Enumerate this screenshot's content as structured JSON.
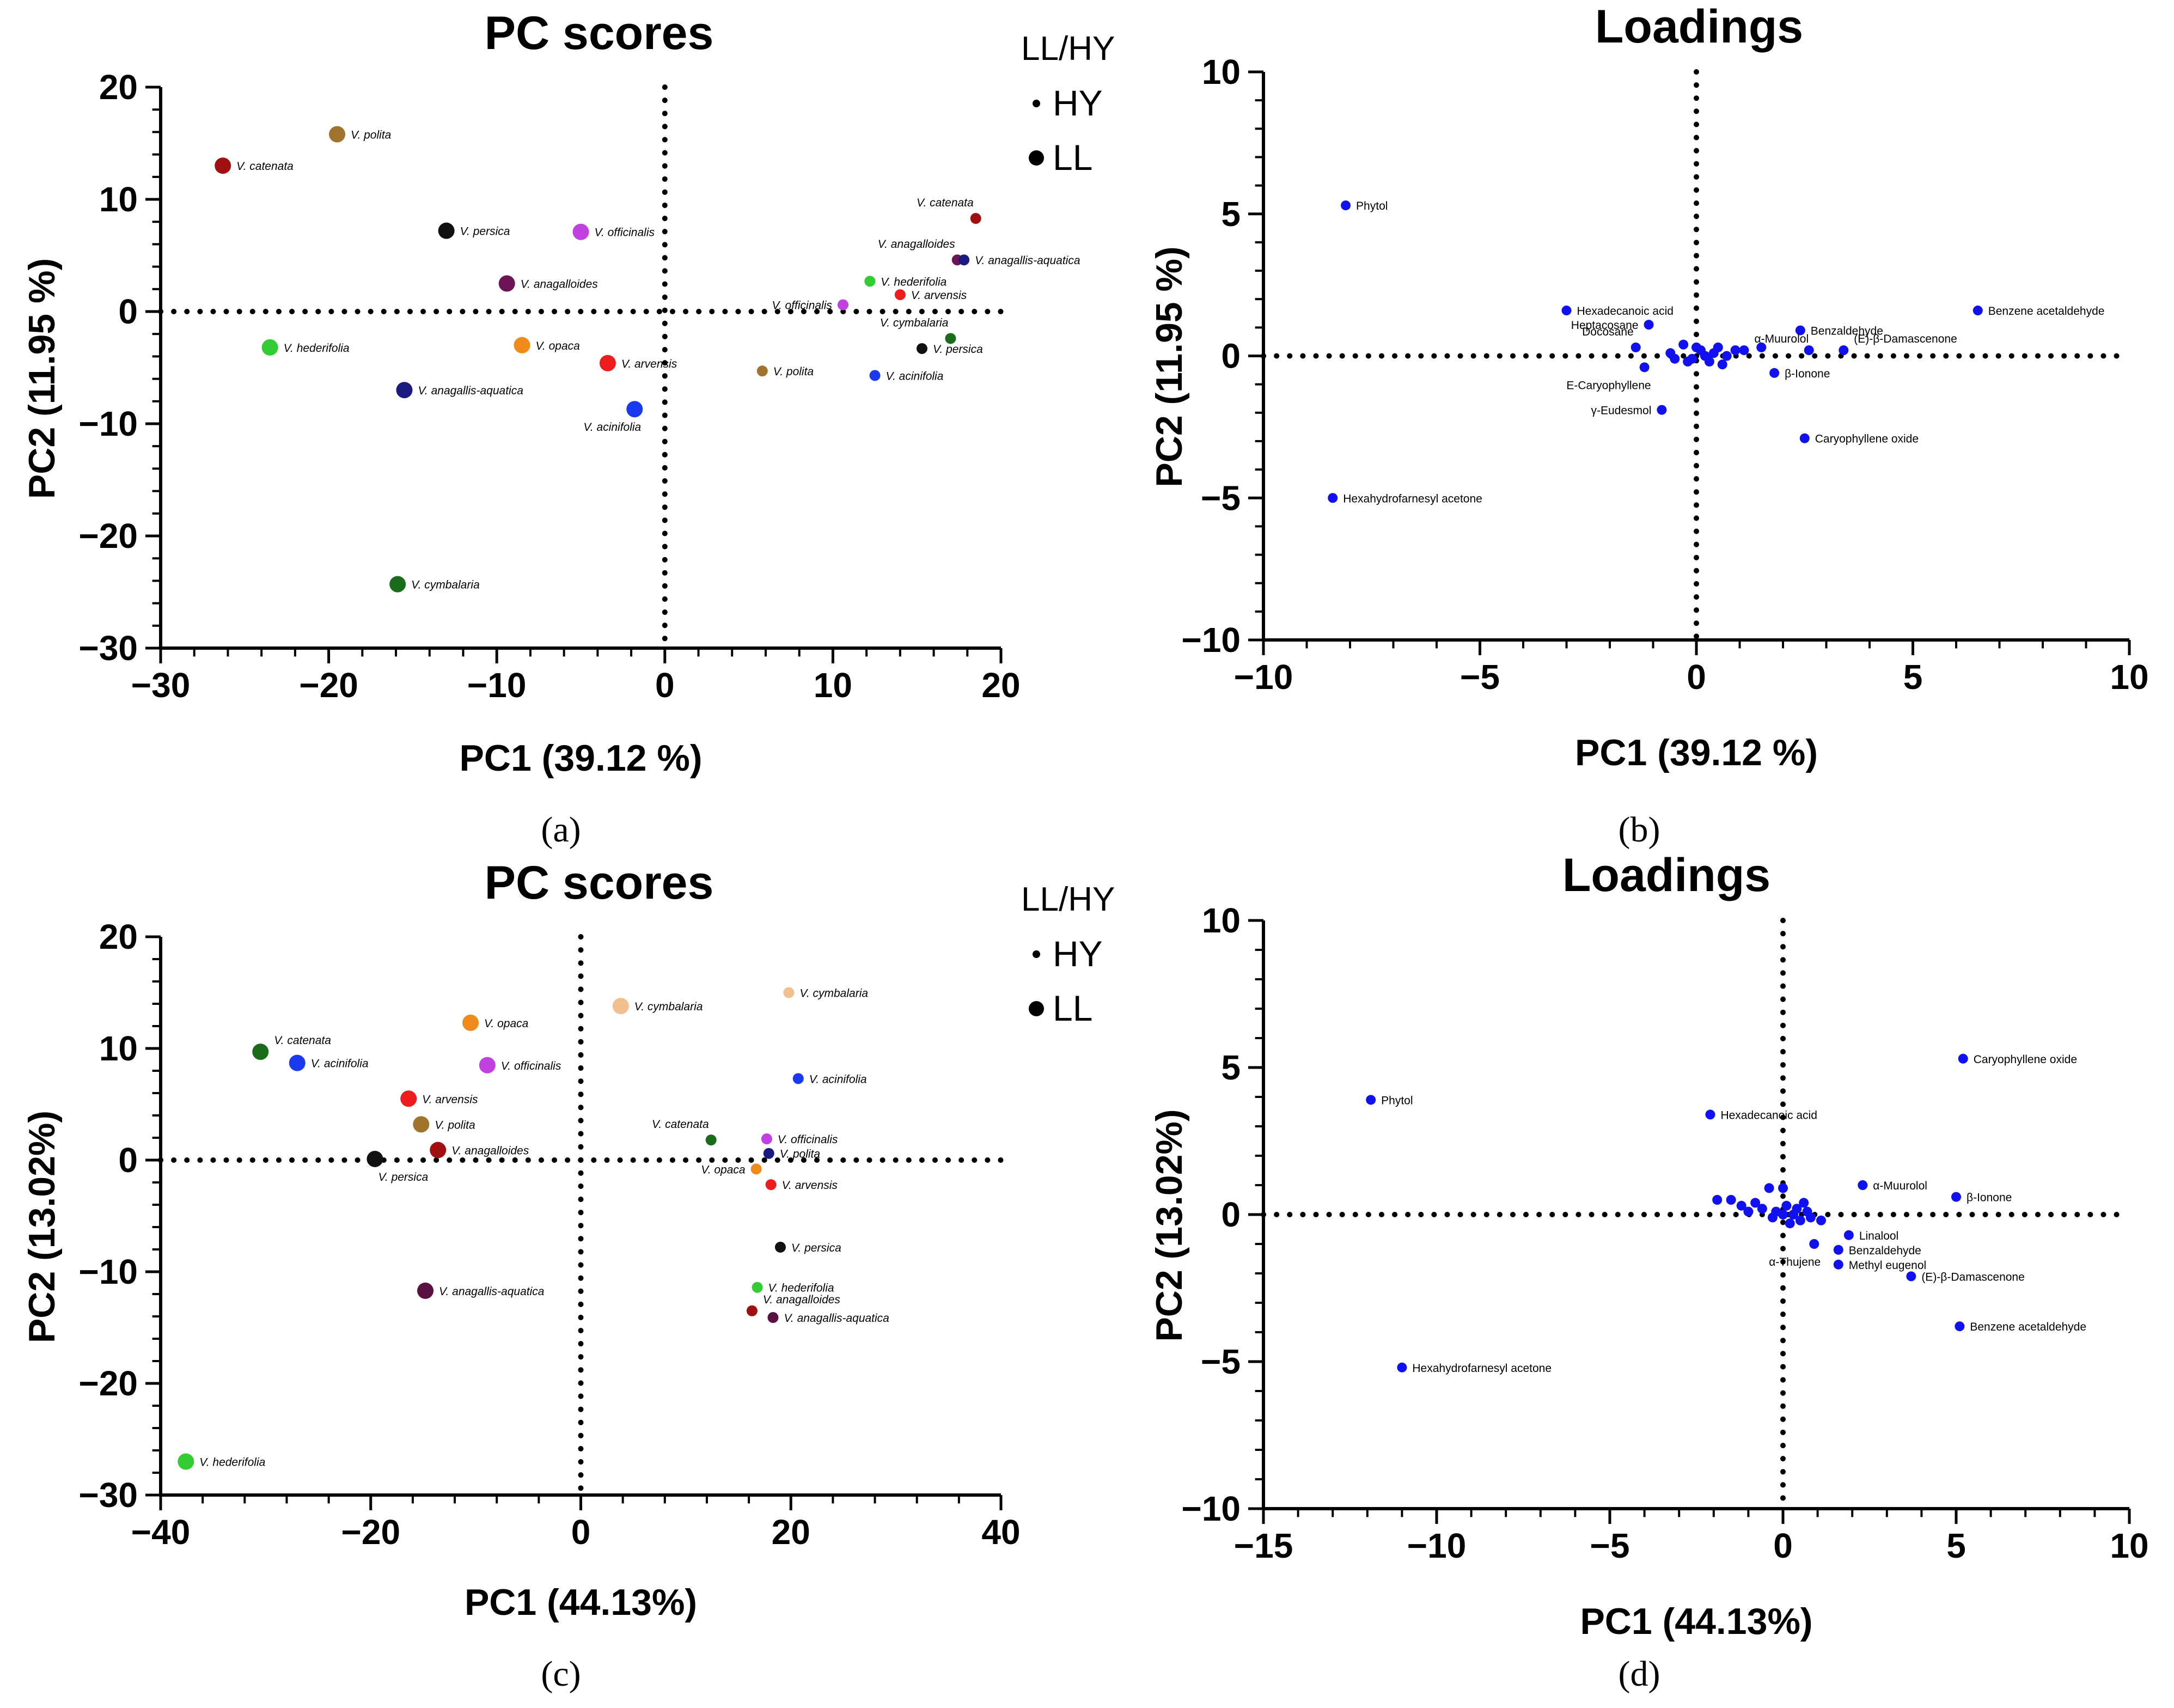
{
  "legend_title": "LL/HY",
  "legend_items": [
    {
      "label": "HY",
      "marker": "small"
    },
    {
      "label": "LL",
      "marker": "large"
    }
  ],
  "chart_data": [
    {
      "panel": "(a)",
      "type": "scatter",
      "title": "PC scores",
      "xlabel": "PC1 (39.12 %)",
      "ylabel": "PC2 (11.95 %)",
      "xlim": [
        -30,
        20
      ],
      "ylim": [
        -30,
        20
      ],
      "xticks": [
        -30,
        -20,
        -10,
        0,
        10,
        20
      ],
      "yticks": [
        -30,
        -20,
        -10,
        0,
        10,
        20
      ],
      "xtick_labels": [
        "−30",
        "−20",
        "−10",
        "0",
        "10",
        "20"
      ],
      "ytick_labels": [
        "−30",
        "−20",
        "−10",
        "0",
        "10",
        "20"
      ],
      "label_style": "italic",
      "has_legend": true,
      "points": [
        {
          "label": "V. polita",
          "x": -19.5,
          "y": 15.8,
          "color": "#a0742f",
          "group": "LL",
          "lpos": "right"
        },
        {
          "label": "V. catenata",
          "x": -26.3,
          "y": 13.0,
          "color": "#a01010",
          "group": "LL",
          "lpos": "right"
        },
        {
          "label": "V. persica",
          "x": -13.0,
          "y": 7.2,
          "color": "#111111",
          "group": "LL",
          "lpos": "right"
        },
        {
          "label": "V. officinalis",
          "x": -5.0,
          "y": 7.1,
          "color": "#c040e0",
          "group": "LL",
          "lpos": "right"
        },
        {
          "label": "V. anagalloides",
          "x": -9.4,
          "y": 2.5,
          "color": "#6b1456",
          "group": "LL",
          "lpos": "right"
        },
        {
          "label": "V. hederifolia",
          "x": -23.5,
          "y": -3.2,
          "color": "#33cc33",
          "group": "LL",
          "lpos": "right"
        },
        {
          "label": "V. opaca",
          "x": -8.5,
          "y": -3.0,
          "color": "#f08a1a",
          "group": "LL",
          "lpos": "right"
        },
        {
          "label": "V. arvensis",
          "x": -3.4,
          "y": -4.6,
          "color": "#ee1c1c",
          "group": "LL",
          "lpos": "right"
        },
        {
          "label": "V. anagallis-aquatica",
          "x": -15.5,
          "y": -7.0,
          "color": "#1a1a80",
          "group": "LL",
          "lpos": "right"
        },
        {
          "label": "V. acinifolia",
          "x": -1.8,
          "y": -8.7,
          "color": "#1a3af0",
          "group": "LL",
          "lpos": "below-left"
        },
        {
          "label": "V. cymbalaria",
          "x": -15.9,
          "y": -24.3,
          "color": "#1a6b1a",
          "group": "LL",
          "lpos": "right"
        },
        {
          "label": "V. catenata",
          "x": 18.5,
          "y": 8.3,
          "color": "#a01010",
          "group": "HY",
          "lpos": "above-left"
        },
        {
          "label": "V. anagalloides",
          "x": 17.4,
          "y": 4.6,
          "color": "#6b1456",
          "group": "HY",
          "lpos": "above-left"
        },
        {
          "label": "V. anagallis-aquatica",
          "x": 17.8,
          "y": 4.6,
          "color": "#1a1a80",
          "group": "HY",
          "lpos": "right"
        },
        {
          "label": "V. hederifolia",
          "x": 12.2,
          "y": 2.7,
          "color": "#33cc33",
          "group": "HY",
          "lpos": "right"
        },
        {
          "label": "V. arvensis",
          "x": 14.0,
          "y": 1.5,
          "color": "#ee1c1c",
          "group": "HY",
          "lpos": "right"
        },
        {
          "label": "V. officinalis",
          "x": 10.6,
          "y": 0.6,
          "color": "#c040e0",
          "group": "HY",
          "lpos": "left"
        },
        {
          "label": "V. cymbalaria",
          "x": 17.0,
          "y": -2.4,
          "color": "#1a6b1a",
          "group": "HY",
          "lpos": "above-left"
        },
        {
          "label": "V. persica",
          "x": 15.3,
          "y": -3.3,
          "color": "#111111",
          "group": "HY",
          "lpos": "right"
        },
        {
          "label": "V. polita",
          "x": 5.8,
          "y": -5.3,
          "color": "#a0742f",
          "group": "HY",
          "lpos": "right"
        },
        {
          "label": "V. acinifolia",
          "x": 12.5,
          "y": -5.7,
          "color": "#1a3af0",
          "group": "HY",
          "lpos": "right"
        }
      ]
    },
    {
      "panel": "(b)",
      "type": "scatter",
      "title": "Loadings",
      "xlabel": "PC1 (39.12 %)",
      "ylabel": "PC2 (11.95 %)",
      "xlim": [
        -10,
        10
      ],
      "ylim": [
        -10,
        10
      ],
      "xticks": [
        -10,
        -5,
        0,
        5,
        10
      ],
      "yticks": [
        -10,
        -5,
        0,
        5,
        10
      ],
      "xtick_labels": [
        "−10",
        "−5",
        "0",
        "5",
        "10"
      ],
      "ytick_labels": [
        "−10",
        "−5",
        "0",
        "5",
        "10"
      ],
      "label_style": "normal",
      "has_legend": false,
      "points": [
        {
          "label": "Phytol",
          "x": -8.1,
          "y": 5.3,
          "lpos": "right"
        },
        {
          "label": "Benzene acetaldehyde",
          "x": 6.5,
          "y": 1.6,
          "lpos": "right"
        },
        {
          "label": "Hexadecanoic acid",
          "x": -3.0,
          "y": 1.6,
          "lpos": "right"
        },
        {
          "label": "Heptacosane",
          "x": -1.1,
          "y": 1.1,
          "lpos": "left"
        },
        {
          "label": "Docosane",
          "x": -1.4,
          "y": 0.3,
          "lpos": "above-left"
        },
        {
          "label": "Benzaldehyde",
          "x": 2.4,
          "y": 0.9,
          "lpos": "right"
        },
        {
          "label": "α-Muurolol",
          "x": 1.1,
          "y": 0.2,
          "lpos": "above-right"
        },
        {
          "label": "(E)-β-Damascenone",
          "x": 3.4,
          "y": 0.2,
          "lpos": "above-right"
        },
        {
          "label": "E-Caryophyllene",
          "x": -1.2,
          "y": -0.4,
          "lpos": "below-left"
        },
        {
          "label": "β-Ionone",
          "x": 1.8,
          "y": -0.6,
          "lpos": "right"
        },
        {
          "label": "γ-Eudesmol",
          "x": -0.8,
          "y": -1.9,
          "lpos": "left"
        },
        {
          "label": "Caryophyllene oxide",
          "x": 2.5,
          "y": -2.9,
          "lpos": "right"
        },
        {
          "label": "Hexahydrofarnesyl acetone",
          "x": -8.4,
          "y": -5.0,
          "lpos": "right"
        },
        {
          "label": "",
          "x": -0.6,
          "y": 0.1
        },
        {
          "label": "",
          "x": -0.3,
          "y": 0.4
        },
        {
          "label": "",
          "x": -0.1,
          "y": -0.1
        },
        {
          "label": "",
          "x": 0.1,
          "y": 0.2
        },
        {
          "label": "",
          "x": 0.3,
          "y": -0.2
        },
        {
          "label": "",
          "x": 0.5,
          "y": 0.3
        },
        {
          "label": "",
          "x": 0.7,
          "y": 0.0
        },
        {
          "label": "",
          "x": 0.9,
          "y": 0.2
        },
        {
          "label": "",
          "x": 0.2,
          "y": 0.0
        },
        {
          "label": "",
          "x": -0.2,
          "y": -0.2
        },
        {
          "label": "",
          "x": 0.6,
          "y": -0.3
        },
        {
          "label": "",
          "x": 1.5,
          "y": 0.3
        },
        {
          "label": "",
          "x": 2.6,
          "y": 0.2
        },
        {
          "label": "",
          "x": 0.0,
          "y": 0.3
        },
        {
          "label": "",
          "x": -0.5,
          "y": -0.1
        },
        {
          "label": "",
          "x": 0.4,
          "y": 0.1
        }
      ]
    },
    {
      "panel": "(c)",
      "type": "scatter",
      "title": "PC scores",
      "xlabel": "PC1 (44.13%)",
      "ylabel": "PC2 (13.02%)",
      "xlim": [
        -40,
        40
      ],
      "ylim": [
        -30,
        20
      ],
      "xticks": [
        -40,
        -20,
        0,
        20,
        40
      ],
      "yticks": [
        -30,
        -20,
        -10,
        0,
        10,
        20
      ],
      "xtick_labels": [
        "−40",
        "−20",
        "0",
        "20",
        "40"
      ],
      "ytick_labels": [
        "−30",
        "−20",
        "−10",
        "0",
        "10",
        "20"
      ],
      "label_style": "italic",
      "has_legend": true,
      "points": [
        {
          "label": "V. catenata",
          "x": -30.5,
          "y": 9.7,
          "color": "#1a6b1a",
          "group": "LL",
          "lpos": "above-right"
        },
        {
          "label": "V. acinifolia",
          "x": -27.0,
          "y": 8.7,
          "color": "#1a3af0",
          "group": "LL",
          "lpos": "right"
        },
        {
          "label": "V. opaca",
          "x": -10.5,
          "y": 12.3,
          "color": "#f08a1a",
          "group": "LL",
          "lpos": "right"
        },
        {
          "label": "V. cymbalaria",
          "x": 3.8,
          "y": 13.8,
          "color": "#f2c08e",
          "group": "LL",
          "lpos": "right"
        },
        {
          "label": "V. officinalis",
          "x": -8.9,
          "y": 8.5,
          "color": "#c040e0",
          "group": "LL",
          "lpos": "right"
        },
        {
          "label": "V. arvensis",
          "x": -16.4,
          "y": 5.5,
          "color": "#ee1c1c",
          "group": "LL",
          "lpos": "right"
        },
        {
          "label": "V. polita",
          "x": -15.2,
          "y": 3.2,
          "color": "#a0742f",
          "group": "LL",
          "lpos": "right"
        },
        {
          "label": "V. anagalloides",
          "x": -13.6,
          "y": 0.9,
          "color": "#a01010",
          "group": "LL",
          "lpos": "right"
        },
        {
          "label": "V. persica",
          "x": -19.6,
          "y": 0.1,
          "color": "#111111",
          "group": "LL",
          "lpos": "below-right"
        },
        {
          "label": "V. anagallis-aquatica",
          "x": -14.8,
          "y": -11.7,
          "color": "#5a1040",
          "group": "LL",
          "lpos": "right"
        },
        {
          "label": "V. hederifolia",
          "x": -37.6,
          "y": -27.0,
          "color": "#33cc33",
          "group": "LL",
          "lpos": "right"
        },
        {
          "label": "V. cymbalaria",
          "x": 19.8,
          "y": 15.0,
          "color": "#f2c08e",
          "group": "HY",
          "lpos": "right"
        },
        {
          "label": "V. acinifolia",
          "x": 20.7,
          "y": 7.3,
          "color": "#1a3af0",
          "group": "HY",
          "lpos": "right"
        },
        {
          "label": "V. catenata",
          "x": 12.4,
          "y": 1.8,
          "color": "#1a6b1a",
          "group": "HY",
          "lpos": "above-left"
        },
        {
          "label": "V. officinalis",
          "x": 17.7,
          "y": 1.9,
          "color": "#c040e0",
          "group": "HY",
          "lpos": "right"
        },
        {
          "label": "V. polita",
          "x": 17.9,
          "y": 0.6,
          "color": "#1a1a80",
          "group": "HY",
          "lpos": "right"
        },
        {
          "label": "V. opaca",
          "x": 16.7,
          "y": -0.8,
          "color": "#f08a1a",
          "group": "HY",
          "lpos": "left"
        },
        {
          "label": "V. arvensis",
          "x": 18.1,
          "y": -2.2,
          "color": "#ee1c1c",
          "group": "HY",
          "lpos": "right"
        },
        {
          "label": "V. persica",
          "x": 19.0,
          "y": -7.8,
          "color": "#111111",
          "group": "HY",
          "lpos": "right"
        },
        {
          "label": "V. hederifolia",
          "x": 16.8,
          "y": -11.4,
          "color": "#33cc33",
          "group": "HY",
          "lpos": "right"
        },
        {
          "label": "V. anagalloides",
          "x": 16.3,
          "y": -13.5,
          "color": "#a01010",
          "group": "HY",
          "lpos": "above-right"
        },
        {
          "label": "V. anagallis-aquatica",
          "x": 18.3,
          "y": -14.1,
          "color": "#5a1040",
          "group": "HY",
          "lpos": "right"
        }
      ]
    },
    {
      "panel": "(d)",
      "type": "scatter",
      "title": "Loadings",
      "xlabel": "PC1 (44.13%)",
      "ylabel": "PC2 (13.02%)",
      "xlim": [
        -15,
        10
      ],
      "ylim": [
        -10,
        10
      ],
      "xticks": [
        -15,
        -10,
        -5,
        0,
        5,
        10
      ],
      "yticks": [
        -10,
        -5,
        0,
        5,
        10
      ],
      "xtick_labels": [
        "−15",
        "−10",
        "−5",
        "0",
        "5",
        "10"
      ],
      "ytick_labels": [
        "−10",
        "−5",
        "0",
        "5",
        "10"
      ],
      "label_style": "normal",
      "has_legend": false,
      "points": [
        {
          "label": "Phytol",
          "x": -11.9,
          "y": 3.9,
          "lpos": "right"
        },
        {
          "label": "Caryophyllene oxide",
          "x": 5.2,
          "y": 5.3,
          "lpos": "right"
        },
        {
          "label": "Hexadecanoic acid",
          "x": -2.1,
          "y": 3.4,
          "lpos": "right"
        },
        {
          "label": "α-Muurolol",
          "x": 2.3,
          "y": 1.0,
          "lpos": "right"
        },
        {
          "label": "β-Ionone",
          "x": 5.0,
          "y": 0.6,
          "lpos": "right"
        },
        {
          "label": "Linalool",
          "x": 1.9,
          "y": -0.7,
          "lpos": "right"
        },
        {
          "label": "Benzaldehyde",
          "x": 1.6,
          "y": -1.2,
          "lpos": "right"
        },
        {
          "label": "Methyl eugenol",
          "x": 1.6,
          "y": -1.7,
          "lpos": "right"
        },
        {
          "label": "(E)-β-Damascenone",
          "x": 3.7,
          "y": -2.1,
          "lpos": "right"
        },
        {
          "label": "Benzene acetaldehyde",
          "x": 5.1,
          "y": -3.8,
          "lpos": "right"
        },
        {
          "label": "α-Thujene",
          "x": 0.9,
          "y": -1.0,
          "lpos": "below-left"
        },
        {
          "label": "Hexahydrofarnesyl acetone",
          "x": -11.0,
          "y": -5.2,
          "lpos": "right"
        },
        {
          "label": "",
          "x": -1.9,
          "y": 0.5
        },
        {
          "label": "",
          "x": -1.5,
          "y": 0.5
        },
        {
          "label": "",
          "x": -1.2,
          "y": 0.3
        },
        {
          "label": "",
          "x": -1.0,
          "y": 0.1
        },
        {
          "label": "",
          "x": -0.8,
          "y": 0.4
        },
        {
          "label": "",
          "x": -0.6,
          "y": 0.2
        },
        {
          "label": "",
          "x": -0.4,
          "y": 0.9
        },
        {
          "label": "",
          "x": -0.2,
          "y": 0.1
        },
        {
          "label": "",
          "x": 0.0,
          "y": 0.9
        },
        {
          "label": "",
          "x": 0.1,
          "y": 0.3
        },
        {
          "label": "",
          "x": 0.3,
          "y": 0.0
        },
        {
          "label": "",
          "x": 0.4,
          "y": 0.2
        },
        {
          "label": "",
          "x": 0.5,
          "y": -0.2
        },
        {
          "label": "",
          "x": 0.7,
          "y": 0.1
        },
        {
          "label": "",
          "x": 0.2,
          "y": -0.3
        },
        {
          "label": "",
          "x": -0.3,
          "y": -0.1
        },
        {
          "label": "",
          "x": 0.6,
          "y": 0.4
        },
        {
          "label": "",
          "x": 1.1,
          "y": -0.2
        },
        {
          "label": "",
          "x": 0.8,
          "y": -0.1
        },
        {
          "label": "",
          "x": 0.0,
          "y": 0.0
        }
      ]
    }
  ]
}
